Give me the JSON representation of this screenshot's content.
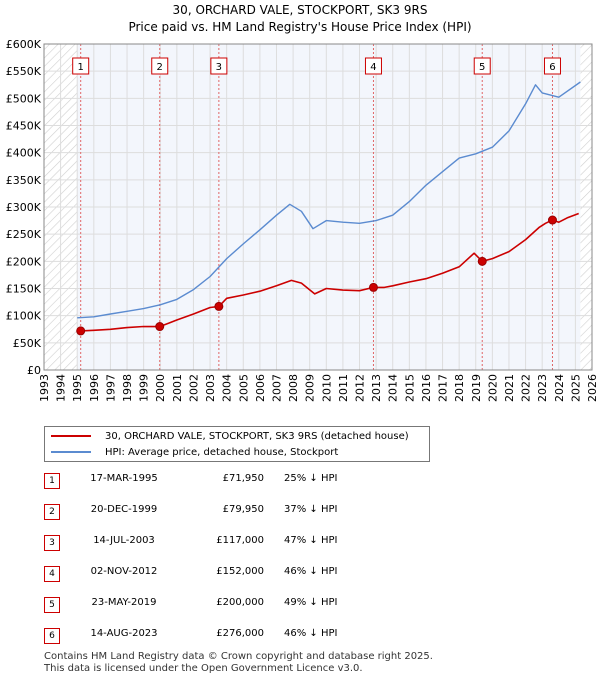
{
  "chart_data": {
    "type": "line",
    "title": "30, ORCHARD VALE, STOCKPORT, SK3 9RS",
    "subtitle": "Price paid vs. HM Land Registry's House Price Index (HPI)",
    "xlim": [
      1993,
      2026
    ],
    "ylim": [
      0,
      600000
    ],
    "x_ticks": [
      "1993",
      "1994",
      "1995",
      "1996",
      "1997",
      "1998",
      "1999",
      "2000",
      "2001",
      "2002",
      "2003",
      "2004",
      "2005",
      "2006",
      "2007",
      "2008",
      "2009",
      "2010",
      "2011",
      "2012",
      "2013",
      "2014",
      "2015",
      "2016",
      "2017",
      "2018",
      "2019",
      "2020",
      "2021",
      "2022",
      "2023",
      "2024",
      "2025",
      "2026"
    ],
    "y_ticks": [
      {
        "value": 0,
        "label": "£0"
      },
      {
        "value": 50000,
        "label": "£50K"
      },
      {
        "value": 100000,
        "label": "£100K"
      },
      {
        "value": 150000,
        "label": "£150K"
      },
      {
        "value": 200000,
        "label": "£200K"
      },
      {
        "value": 250000,
        "label": "£250K"
      },
      {
        "value": 300000,
        "label": "£300K"
      },
      {
        "value": 350000,
        "label": "£350K"
      },
      {
        "value": 400000,
        "label": "£400K"
      },
      {
        "value": 450000,
        "label": "£450K"
      },
      {
        "value": 500000,
        "label": "£500K"
      },
      {
        "value": 550000,
        "label": "£550K"
      },
      {
        "value": 600000,
        "label": "£600K"
      }
    ],
    "data_start": 1995.0,
    "data_end": 2025.3,
    "series": [
      {
        "name": "30, ORCHARD VALE, STOCKPORT, SK3 9RS (detached house)",
        "color": "#cc0000",
        "points": [
          [
            1995.2,
            71950
          ],
          [
            1996,
            73000
          ],
          [
            1997,
            75000
          ],
          [
            1998,
            78000
          ],
          [
            1999,
            80000
          ],
          [
            1999.96,
            79950
          ],
          [
            2000.5,
            86000
          ],
          [
            2001,
            92000
          ],
          [
            2002,
            103000
          ],
          [
            2003,
            115000
          ],
          [
            2003.53,
            117000
          ],
          [
            2004,
            132000
          ],
          [
            2005,
            138000
          ],
          [
            2006,
            145000
          ],
          [
            2007,
            155000
          ],
          [
            2007.9,
            165000
          ],
          [
            2008.5,
            160000
          ],
          [
            2009.3,
            140000
          ],
          [
            2010,
            150000
          ],
          [
            2011,
            147000
          ],
          [
            2012,
            146000
          ],
          [
            2012.84,
            152000
          ],
          [
            2013.5,
            152000
          ],
          [
            2014,
            155000
          ],
          [
            2015,
            162000
          ],
          [
            2016,
            168000
          ],
          [
            2017,
            178000
          ],
          [
            2018,
            190000
          ],
          [
            2018.9,
            215000
          ],
          [
            2019.39,
            200000
          ],
          [
            2020,
            205000
          ],
          [
            2021,
            218000
          ],
          [
            2022,
            240000
          ],
          [
            2022.8,
            262000
          ],
          [
            2023.2,
            270000
          ],
          [
            2023.62,
            276000
          ],
          [
            2024,
            272000
          ],
          [
            2024.5,
            280000
          ],
          [
            2025.2,
            288000
          ]
        ]
      },
      {
        "name": "HPI: Average price, detached house, Stockport",
        "color": "#5b8bd0",
        "points": [
          [
            1995,
            96000
          ],
          [
            1996,
            98000
          ],
          [
            1997,
            103000
          ],
          [
            1998,
            108000
          ],
          [
            1999,
            113000
          ],
          [
            2000,
            120000
          ],
          [
            2001,
            130000
          ],
          [
            2002,
            148000
          ],
          [
            2003,
            172000
          ],
          [
            2004,
            205000
          ],
          [
            2005,
            232000
          ],
          [
            2006,
            258000
          ],
          [
            2007,
            285000
          ],
          [
            2007.8,
            305000
          ],
          [
            2008.5,
            292000
          ],
          [
            2009.2,
            260000
          ],
          [
            2010,
            275000
          ],
          [
            2011,
            272000
          ],
          [
            2012,
            270000
          ],
          [
            2013,
            275000
          ],
          [
            2014,
            285000
          ],
          [
            2015,
            310000
          ],
          [
            2016,
            340000
          ],
          [
            2017,
            365000
          ],
          [
            2018,
            390000
          ],
          [
            2019,
            398000
          ],
          [
            2020,
            410000
          ],
          [
            2021,
            440000
          ],
          [
            2022,
            490000
          ],
          [
            2022.6,
            525000
          ],
          [
            2023,
            510000
          ],
          [
            2024,
            502000
          ],
          [
            2025.3,
            530000
          ]
        ]
      }
    ],
    "sale_markers": [
      {
        "label": "1",
        "x": 1995.21,
        "y": 71950
      },
      {
        "label": "2",
        "x": 1999.97,
        "y": 79950
      },
      {
        "label": "3",
        "x": 2003.53,
        "y": 117000
      },
      {
        "label": "4",
        "x": 2012.84,
        "y": 152000
      },
      {
        "label": "5",
        "x": 2019.39,
        "y": 200000
      },
      {
        "label": "6",
        "x": 2023.62,
        "y": 276000
      }
    ]
  },
  "legend": {
    "property_label": "30, ORCHARD VALE, STOCKPORT, SK3 9RS (detached house)",
    "hpi_label": "HPI: Average price, detached house, Stockport"
  },
  "sales": [
    {
      "num": "1",
      "date": "17-MAR-1995",
      "price": "£71,950",
      "hpi": "25% ↓ HPI"
    },
    {
      "num": "2",
      "date": "20-DEC-1999",
      "price": "£79,950",
      "hpi": "37% ↓ HPI"
    },
    {
      "num": "3",
      "date": "14-JUL-2003",
      "price": "£117,000",
      "hpi": "47% ↓ HPI"
    },
    {
      "num": "4",
      "date": "02-NOV-2012",
      "price": "£152,000",
      "hpi": "46% ↓ HPI"
    },
    {
      "num": "5",
      "date": "23-MAY-2019",
      "price": "£200,000",
      "hpi": "49% ↓ HPI"
    },
    {
      "num": "6",
      "date": "14-AUG-2023",
      "price": "£276,000",
      "hpi": "46% ↓ HPI"
    }
  ],
  "footer": {
    "line1": "Contains HM Land Registry data © Crown copyright and database right 2025.",
    "line2": "This data is licensed under the Open Government Licence v3.0."
  }
}
